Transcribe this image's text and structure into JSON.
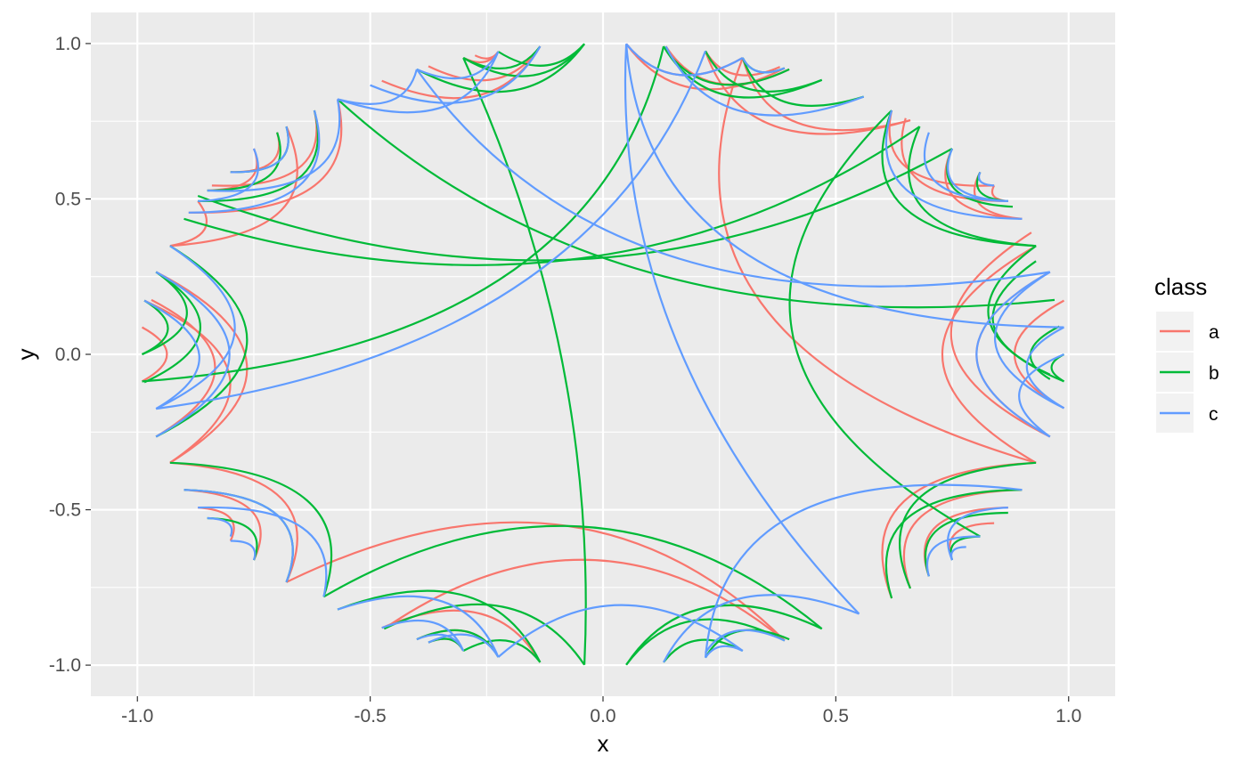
{
  "chart_data": {
    "type": "line",
    "title": "",
    "xlabel": "x",
    "ylabel": "y",
    "xlim": [
      -1.1,
      1.1
    ],
    "ylim": [
      -1.1,
      1.1
    ],
    "x_ticks": [
      -1.0,
      -0.5,
      0.0,
      0.5,
      1.0
    ],
    "x_tick_labels": [
      "-1.0",
      "-0.5",
      "0.0",
      "0.5",
      "1.0"
    ],
    "y_ticks": [
      -1.0,
      -0.5,
      0.0,
      0.5,
      1.0
    ],
    "y_tick_labels": [
      "-1.0",
      "-0.5",
      "0.0",
      "0.5",
      "1.0"
    ],
    "grid": true,
    "legend": {
      "title": "class",
      "position": "right",
      "items": [
        {
          "label": "a",
          "color": "#F8766D"
        },
        {
          "label": "b",
          "color": "#00BA38"
        },
        {
          "label": "c",
          "color": "#619CFF"
        }
      ]
    },
    "series": [
      {
        "name": "a",
        "color": "#F8766D",
        "edges": [
          [
            -0.135,
            0.991,
            -0.475,
            0.88
          ],
          [
            -0.135,
            0.991,
            -0.375,
            0.927
          ],
          [
            -0.225,
            0.974,
            -0.3,
            0.954
          ],
          [
            -0.225,
            0.974,
            -0.275,
            0.962
          ],
          [
            0.05,
            0.999,
            0.39,
            0.921
          ],
          [
            0.05,
            0.999,
            0.3,
            0.954
          ],
          [
            0.3,
            0.954,
            0.93,
            -0.349
          ],
          [
            0.22,
            0.976,
            0.66,
            0.753
          ],
          [
            0.3,
            0.954,
            0.66,
            0.753
          ],
          [
            0.62,
            0.785,
            0.84,
            0.543
          ],
          [
            0.65,
            0.76,
            0.87,
            0.493
          ],
          [
            0.75,
            0.662,
            0.9,
            0.436
          ],
          [
            0.81,
            0.586,
            0.9,
            0.436
          ],
          [
            0.84,
            0.543,
            0.87,
            0.493
          ],
          [
            0.92,
            0.392,
            0.96,
            -0.265
          ],
          [
            0.93,
            0.349,
            0.93,
            -0.349
          ],
          [
            0.99,
            0.173,
            0.99,
            -0.173
          ],
          [
            0.96,
            0.265,
            0.96,
            -0.265
          ],
          [
            0.93,
            -0.349,
            0.62,
            -0.785
          ],
          [
            0.9,
            -0.436,
            0.66,
            -0.753
          ],
          [
            0.87,
            -0.493,
            0.7,
            -0.714
          ],
          [
            0.84,
            -0.543,
            0.75,
            -0.662
          ],
          [
            0.39,
            -0.921,
            -0.68,
            -0.733
          ],
          [
            0.39,
            -0.921,
            -0.47,
            -0.883
          ],
          [
            -0.135,
            -0.991,
            -0.475,
            -0.88
          ],
          [
            -0.225,
            -0.974,
            -0.4,
            -0.917
          ],
          [
            -0.3,
            -0.954,
            -0.375,
            -0.927
          ],
          [
            -0.68,
            -0.733,
            -0.93,
            -0.349
          ],
          [
            -0.75,
            -0.662,
            -0.9,
            -0.436
          ],
          [
            -0.8,
            -0.6,
            -0.87,
            -0.493
          ],
          [
            -0.93,
            -0.349,
            -0.96,
            0.265
          ],
          [
            -0.99,
            0.087,
            -0.99,
            -0.087
          ],
          [
            -0.985,
            0.173,
            -0.93,
            -0.349
          ],
          [
            -0.97,
            0.175,
            -0.96,
            -0.265
          ],
          [
            -0.87,
            0.493,
            -0.93,
            0.349
          ],
          [
            -0.68,
            0.733,
            -0.93,
            0.349
          ],
          [
            -0.57,
            0.821,
            -0.89,
            0.456
          ],
          [
            -0.7,
            0.714,
            -0.8,
            0.586
          ],
          [
            -0.75,
            0.662,
            -0.85,
            0.527
          ],
          [
            -0.62,
            0.785,
            -0.84,
            0.543
          ],
          [
            0.135,
            0.991,
            0.4,
            0.917
          ],
          [
            0.38,
            0.925,
            0.22,
            0.976
          ]
        ]
      },
      {
        "name": "b",
        "color": "#00BA38",
        "edges": [
          [
            -0.04,
            0.999,
            -0.3,
            0.954
          ],
          [
            -0.04,
            0.999,
            -0.4,
            0.917
          ],
          [
            -0.04,
            0.999,
            -0.225,
            0.974
          ],
          [
            -0.3,
            0.954,
            -0.135,
            0.991
          ],
          [
            -0.3,
            0.954,
            -0.04,
            -0.999
          ],
          [
            0.13,
            0.991,
            -0.99,
            -0.087
          ],
          [
            0.13,
            0.991,
            0.47,
            0.883
          ],
          [
            0.13,
            0.991,
            0.4,
            0.917
          ],
          [
            0.3,
            0.954,
            0.56,
            0.829
          ],
          [
            0.3,
            0.954,
            0.39,
            0.921
          ],
          [
            0.22,
            0.976,
            0.47,
            0.883
          ],
          [
            0.62,
            0.785,
            0.81,
            -0.586
          ],
          [
            0.68,
            0.733,
            -0.9,
            0.436
          ],
          [
            0.75,
            0.662,
            -0.87,
            0.51
          ],
          [
            0.62,
            0.785,
            0.93,
            0.349
          ],
          [
            0.68,
            0.733,
            0.93,
            0.349
          ],
          [
            0.75,
            0.662,
            0.88,
            0.475
          ],
          [
            0.81,
            0.586,
            0.87,
            0.493
          ],
          [
            0.97,
            0.175,
            -0.57,
            0.821
          ],
          [
            0.99,
            -0.087,
            0.99,
            0.0
          ],
          [
            0.96,
            -0.08,
            0.98,
            0.09
          ],
          [
            0.99,
            -0.087,
            0.93,
            0.349
          ],
          [
            0.96,
            -0.065,
            0.93,
            0.3
          ],
          [
            0.9,
            -0.436,
            0.62,
            -0.785
          ],
          [
            0.93,
            -0.349,
            0.66,
            -0.753
          ],
          [
            0.87,
            -0.51,
            0.7,
            -0.714
          ],
          [
            0.81,
            -0.586,
            0.75,
            -0.662
          ],
          [
            0.47,
            -0.883,
            -0.6,
            -0.78
          ],
          [
            0.47,
            -0.883,
            0.05,
            -0.999
          ],
          [
            0.39,
            -0.921,
            0.05,
            -0.999
          ],
          [
            0.3,
            -0.954,
            0.13,
            -0.991
          ],
          [
            0.22,
            -0.976,
            0.4,
            -0.917
          ],
          [
            -0.04,
            -0.999,
            -0.47,
            -0.883
          ],
          [
            -0.135,
            -0.991,
            -0.57,
            -0.821
          ],
          [
            -0.225,
            -0.974,
            -0.4,
            -0.917
          ],
          [
            -0.3,
            -0.954,
            -0.375,
            -0.927
          ],
          [
            -0.135,
            -0.991,
            -0.3,
            -0.954
          ],
          [
            -0.6,
            -0.78,
            -0.93,
            -0.349
          ],
          [
            -0.68,
            -0.733,
            -0.9,
            -0.436
          ],
          [
            -0.75,
            -0.662,
            -0.85,
            -0.527
          ],
          [
            -0.96,
            -0.265,
            -0.93,
            0.349
          ],
          [
            -0.99,
            0.0,
            -0.96,
            0.265
          ],
          [
            -0.99,
            0.0,
            -0.985,
            0.173
          ],
          [
            -0.985,
            -0.09,
            -0.96,
            0.265
          ],
          [
            -0.62,
            0.785,
            -0.87,
            0.493
          ],
          [
            -0.68,
            0.733,
            -0.8,
            0.586
          ],
          [
            -0.7,
            0.714,
            -0.85,
            0.527
          ]
        ]
      },
      {
        "name": "c",
        "color": "#619CFF",
        "edges": [
          [
            -0.4,
            0.917,
            -0.57,
            0.821
          ],
          [
            -0.225,
            0.974,
            -0.4,
            0.917
          ],
          [
            -0.225,
            0.974,
            -0.57,
            0.821
          ],
          [
            -0.135,
            0.991,
            -0.5,
            0.866
          ],
          [
            -0.4,
            0.917,
            0.96,
            0.265
          ],
          [
            0.05,
            0.999,
            0.99,
            0.087
          ],
          [
            0.05,
            0.999,
            0.3,
            0.954
          ],
          [
            0.22,
            0.976,
            -0.96,
            -0.175
          ],
          [
            0.56,
            0.829,
            0.135,
            0.991
          ],
          [
            0.3,
            0.954,
            0.39,
            0.921
          ],
          [
            0.62,
            0.785,
            0.9,
            0.436
          ],
          [
            0.7,
            0.714,
            0.87,
            0.493
          ],
          [
            0.75,
            0.662,
            0.87,
            0.493
          ],
          [
            0.81,
            0.586,
            0.84,
            0.543
          ],
          [
            0.96,
            0.265,
            0.96,
            -0.265
          ],
          [
            0.96,
            0.265,
            0.99,
            -0.173
          ],
          [
            0.99,
            0.087,
            0.99,
            -0.173
          ],
          [
            0.99,
            0.0,
            0.96,
            -0.265
          ],
          [
            0.9,
            -0.436,
            0.22,
            -0.976
          ],
          [
            0.87,
            -0.493,
            0.75,
            -0.662
          ],
          [
            0.81,
            -0.586,
            0.7,
            -0.714
          ],
          [
            0.78,
            -0.62,
            0.75,
            -0.662
          ],
          [
            0.55,
            -0.835,
            0.05,
            0.999
          ],
          [
            0.55,
            -0.835,
            0.13,
            -0.991
          ],
          [
            0.3,
            -0.954,
            -0.225,
            -0.974
          ],
          [
            0.22,
            -0.976,
            0.3,
            -0.954
          ],
          [
            0.22,
            -0.96,
            0.39,
            -0.921
          ],
          [
            -0.225,
            -0.974,
            -0.57,
            -0.821
          ],
          [
            -0.3,
            -0.954,
            -0.475,
            -0.88
          ],
          [
            -0.3,
            -0.954,
            -0.4,
            -0.917
          ],
          [
            -0.225,
            -0.974,
            -0.375,
            -0.927
          ],
          [
            -0.6,
            -0.78,
            -0.87,
            -0.493
          ],
          [
            -0.68,
            -0.733,
            -0.9,
            -0.436
          ],
          [
            -0.75,
            -0.662,
            -0.8,
            -0.6
          ],
          [
            -0.8,
            -0.586,
            -0.85,
            -0.527
          ],
          [
            -0.96,
            -0.265,
            -0.96,
            0.265
          ],
          [
            -0.96,
            -0.175,
            -0.985,
            0.173
          ],
          [
            -0.96,
            -0.175,
            -0.93,
            0.349
          ],
          [
            -0.57,
            0.821,
            -0.85,
            0.527
          ],
          [
            -0.62,
            0.785,
            -0.89,
            0.456
          ],
          [
            -0.68,
            0.733,
            -0.8,
            0.586
          ],
          [
            -0.75,
            0.662,
            -0.87,
            0.493
          ]
        ]
      }
    ]
  }
}
